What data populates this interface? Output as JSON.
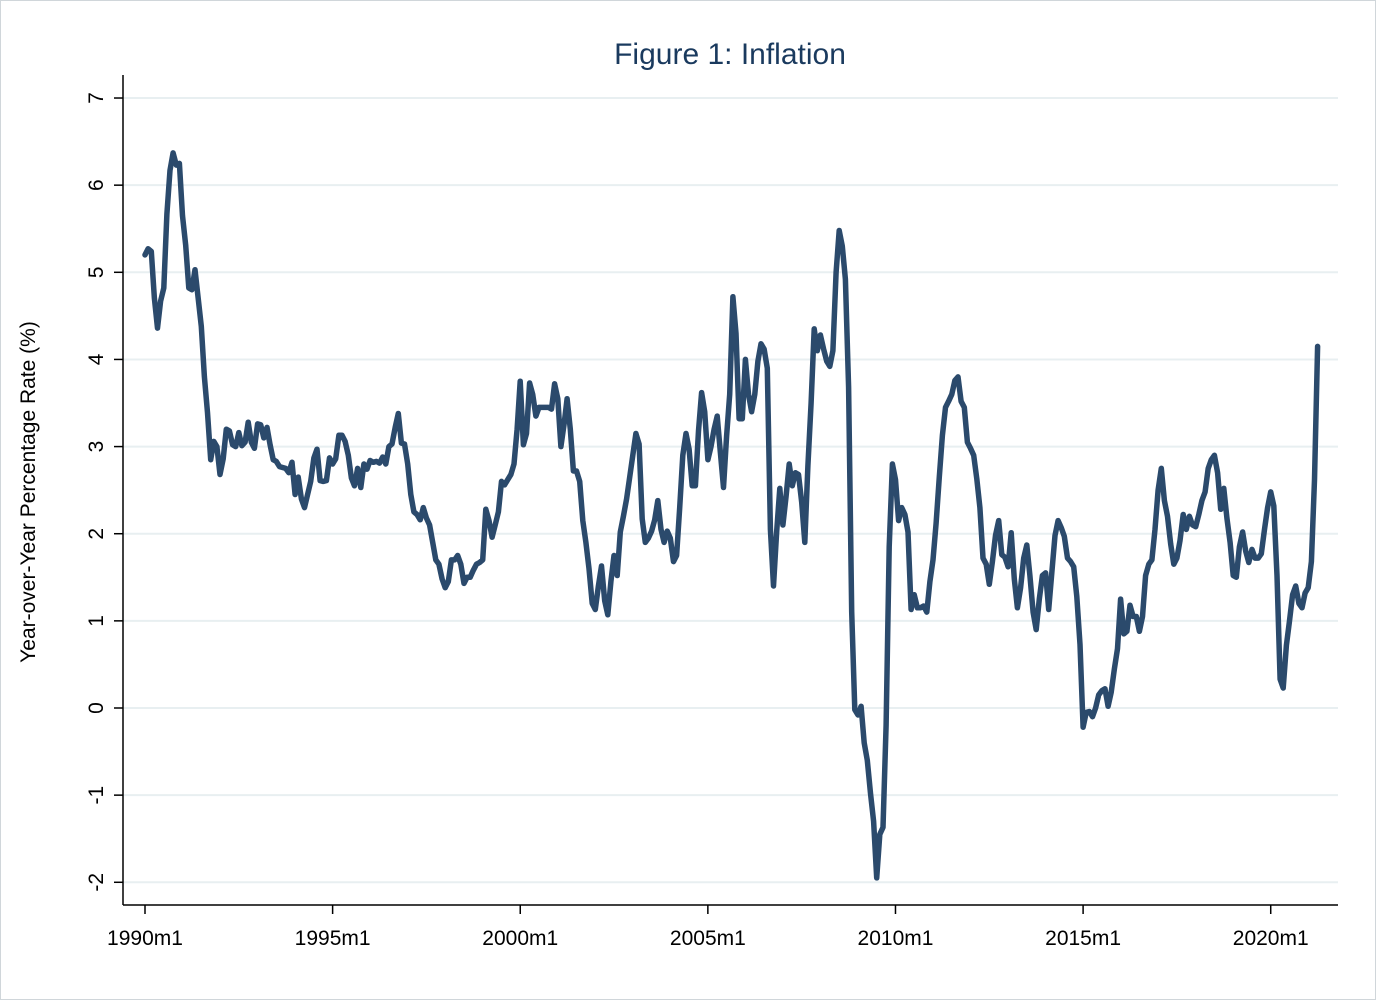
{
  "chart_data": {
    "type": "line",
    "title": "Figure 1: Inflation",
    "xlabel": "",
    "ylabel": "Year-over-Year Percentage Rate (%)",
    "ylim": [
      -2,
      7
    ],
    "yticks": [
      "-2",
      "-1",
      "0",
      "1",
      "2",
      "3",
      "4",
      "5",
      "6",
      "7"
    ],
    "xticks": [
      "1990m1",
      "1995m1",
      "2000m1",
      "2005m1",
      "2010m1",
      "2015m1",
      "2020m1"
    ],
    "grid": true,
    "line_color": "#2b4a6c",
    "title_color": "#1a3a5e",
    "x": [
      "1990m1",
      "1990m2",
      "1990m3",
      "1990m4",
      "1990m5",
      "1990m6",
      "1990m7",
      "1990m8",
      "1990m9",
      "1990m10",
      "1990m11",
      "1990m12",
      "1991m1",
      "1991m2",
      "1991m3",
      "1991m4",
      "1991m5",
      "1991m6",
      "1991m7",
      "1991m8",
      "1991m9",
      "1991m10",
      "1991m11",
      "1991m12",
      "1992m1",
      "1992m2",
      "1992m3",
      "1992m4",
      "1992m5",
      "1992m6",
      "1992m7",
      "1992m8",
      "1992m9",
      "1992m10",
      "1992m11",
      "1992m12",
      "1993m1",
      "1993m2",
      "1993m3",
      "1993m4",
      "1993m5",
      "1993m6",
      "1993m7",
      "1993m8",
      "1993m9",
      "1993m10",
      "1993m11",
      "1993m12",
      "1994m1",
      "1994m2",
      "1994m3",
      "1994m4",
      "1994m5",
      "1994m6",
      "1994m7",
      "1994m8",
      "1994m9",
      "1994m10",
      "1994m11",
      "1994m12",
      "1995m1",
      "1995m2",
      "1995m3",
      "1995m4",
      "1995m5",
      "1995m6",
      "1995m7",
      "1995m8",
      "1995m9",
      "1995m10",
      "1995m11",
      "1995m12",
      "1996m1",
      "1996m2",
      "1996m3",
      "1996m4",
      "1996m5",
      "1996m6",
      "1996m7",
      "1996m8",
      "1996m9",
      "1996m10",
      "1996m11",
      "1996m12",
      "1997m1",
      "1997m2",
      "1997m3",
      "1997m4",
      "1997m5",
      "1997m6",
      "1997m7",
      "1997m8",
      "1997m9",
      "1997m10",
      "1997m11",
      "1997m12",
      "1998m1",
      "1998m2",
      "1998m3",
      "1998m4",
      "1998m5",
      "1998m6",
      "1998m7",
      "1998m8",
      "1998m9",
      "1998m10",
      "1998m11",
      "1998m12",
      "1999m1",
      "1999m2",
      "1999m3",
      "1999m4",
      "1999m5",
      "1999m6",
      "1999m7",
      "1999m8",
      "1999m9",
      "1999m10",
      "1999m11",
      "1999m12",
      "2000m1",
      "2000m2",
      "2000m3",
      "2000m4",
      "2000m5",
      "2000m6",
      "2000m7",
      "2000m8",
      "2000m9",
      "2000m10",
      "2000m11",
      "2000m12",
      "2001m1",
      "2001m2",
      "2001m3",
      "2001m4",
      "2001m5",
      "2001m6",
      "2001m7",
      "2001m8",
      "2001m9",
      "2001m10",
      "2001m11",
      "2001m12",
      "2002m1",
      "2002m2",
      "2002m3",
      "2002m4",
      "2002m5",
      "2002m6",
      "2002m7",
      "2002m8",
      "2002m9",
      "2002m10",
      "2002m11",
      "2002m12",
      "2003m1",
      "2003m2",
      "2003m3",
      "2003m4",
      "2003m5",
      "2003m6",
      "2003m7",
      "2003m8",
      "2003m9",
      "2003m10",
      "2003m11",
      "2003m12",
      "2004m1",
      "2004m2",
      "2004m3",
      "2004m4",
      "2004m5",
      "2004m6",
      "2004m7",
      "2004m8",
      "2004m9",
      "2004m10",
      "2004m11",
      "2004m12",
      "2005m1",
      "2005m2",
      "2005m3",
      "2005m4",
      "2005m5",
      "2005m6",
      "2005m7",
      "2005m8",
      "2005m9",
      "2005m10",
      "2005m11",
      "2005m12",
      "2006m1",
      "2006m2",
      "2006m3",
      "2006m4",
      "2006m5",
      "2006m6",
      "2006m7",
      "2006m8",
      "2006m9",
      "2006m10",
      "2006m11",
      "2006m12",
      "2007m1",
      "2007m2",
      "2007m3",
      "2007m4",
      "2007m5",
      "2007m6",
      "2007m7",
      "2007m8",
      "2007m9",
      "2007m10",
      "2007m11",
      "2007m12",
      "2008m1",
      "2008m2",
      "2008m3",
      "2008m4",
      "2008m5",
      "2008m6",
      "2008m7",
      "2008m8",
      "2008m9",
      "2008m10",
      "2008m11",
      "2008m12",
      "2009m1",
      "2009m2",
      "2009m3",
      "2009m4",
      "2009m5",
      "2009m6",
      "2009m7",
      "2009m8",
      "2009m9",
      "2009m10",
      "2009m11",
      "2009m12",
      "2010m1",
      "2010m2",
      "2010m3",
      "2010m4",
      "2010m5",
      "2010m6",
      "2010m7",
      "2010m8",
      "2010m9",
      "2010m10",
      "2010m11",
      "2010m12",
      "2011m1",
      "2011m2",
      "2011m3",
      "2011m4",
      "2011m5",
      "2011m6",
      "2011m7",
      "2011m8",
      "2011m9",
      "2011m10",
      "2011m11",
      "2011m12",
      "2012m1",
      "2012m2",
      "2012m3",
      "2012m4",
      "2012m5",
      "2012m6",
      "2012m7",
      "2012m8",
      "2012m9",
      "2012m10",
      "2012m11",
      "2012m12",
      "2013m1",
      "2013m2",
      "2013m3",
      "2013m4",
      "2013m5",
      "2013m6",
      "2013m7",
      "2013m8",
      "2013m9",
      "2013m10",
      "2013m11",
      "2013m12",
      "2014m1",
      "2014m2",
      "2014m3",
      "2014m4",
      "2014m5",
      "2014m6",
      "2014m7",
      "2014m8",
      "2014m9",
      "2014m10",
      "2014m11",
      "2014m12",
      "2015m1",
      "2015m2",
      "2015m3",
      "2015m4",
      "2015m5",
      "2015m6",
      "2015m7",
      "2015m8",
      "2015m9",
      "2015m10",
      "2015m11",
      "2015m12",
      "2016m1",
      "2016m2",
      "2016m3",
      "2016m4",
      "2016m5",
      "2016m6",
      "2016m7",
      "2016m8",
      "2016m9",
      "2016m10",
      "2016m11",
      "2016m12",
      "2017m1",
      "2017m2",
      "2017m3",
      "2017m4",
      "2017m5",
      "2017m6",
      "2017m7",
      "2017m8",
      "2017m9",
      "2017m10",
      "2017m11",
      "2017m12",
      "2018m1",
      "2018m2",
      "2018m3",
      "2018m4",
      "2018m5",
      "2018m6",
      "2018m7",
      "2018m8",
      "2018m9",
      "2018m10",
      "2018m11",
      "2018m12",
      "2019m1",
      "2019m2",
      "2019m3",
      "2019m4",
      "2019m5",
      "2019m6",
      "2019m7",
      "2019m8",
      "2019m9",
      "2019m10",
      "2019m11",
      "2019m12",
      "2020m1",
      "2020m2",
      "2020m3",
      "2020m4",
      "2020m5",
      "2020m6",
      "2020m7",
      "2020m8",
      "2020m9",
      "2020m10",
      "2020m11",
      "2020m12",
      "2021m1",
      "2021m2",
      "2021m3",
      "2021m4"
    ],
    "y": [
      5.2,
      5.27,
      5.24,
      4.7,
      4.36,
      4.67,
      4.82,
      5.67,
      6.17,
      6.37,
      6.23,
      6.25,
      5.65,
      5.31,
      4.82,
      4.8,
      5.03,
      4.7,
      4.38,
      3.8,
      3.39,
      2.85,
      3.06,
      3.0,
      2.68,
      2.86,
      3.2,
      3.18,
      3.02,
      3.0,
      3.16,
      3.01,
      3.05,
      3.28,
      3.05,
      2.98,
      3.26,
      3.25,
      3.1,
      3.22,
      3.02,
      2.85,
      2.83,
      2.77,
      2.76,
      2.75,
      2.7,
      2.82,
      2.45,
      2.65,
      2.4,
      2.3,
      2.45,
      2.6,
      2.87,
      2.97,
      2.61,
      2.6,
      2.61,
      2.87,
      2.8,
      2.86,
      3.13,
      3.13,
      3.06,
      2.9,
      2.64,
      2.55,
      2.75,
      2.53,
      2.8,
      2.74,
      2.84,
      2.82,
      2.83,
      2.81,
      2.88,
      2.8,
      3.0,
      3.03,
      3.22,
      3.38,
      3.04,
      3.03,
      2.8,
      2.45,
      2.25,
      2.22,
      2.16,
      2.3,
      2.18,
      2.1,
      1.9,
      1.7,
      1.65,
      1.48,
      1.38,
      1.45,
      1.7,
      1.7,
      1.75,
      1.65,
      1.43,
      1.5,
      1.5,
      1.58,
      1.65,
      1.67,
      1.7,
      2.28,
      2.15,
      1.96,
      2.1,
      2.25,
      2.6,
      2.56,
      2.62,
      2.68,
      2.8,
      3.2,
      3.75,
      3.02,
      3.15,
      3.73,
      3.6,
      3.35,
      3.45,
      3.45,
      3.45,
      3.45,
      3.43,
      3.72,
      3.55,
      3.0,
      3.25,
      3.55,
      3.2,
      2.72,
      2.72,
      2.6,
      2.15,
      1.9,
      1.6,
      1.2,
      1.13,
      1.4,
      1.63,
      1.23,
      1.07,
      1.45,
      1.75,
      1.52,
      2.02,
      2.2,
      2.4,
      2.65,
      2.9,
      3.15,
      3.03,
      2.17,
      1.9,
      1.95,
      2.03,
      2.16,
      2.38,
      2.05,
      1.9,
      2.03,
      1.95,
      1.68,
      1.75,
      2.3,
      2.9,
      3.15,
      2.97,
      2.55,
      2.55,
      3.18,
      3.62,
      3.4,
      2.85,
      3.0,
      3.2,
      3.35,
      2.93,
      2.53,
      3.12,
      3.6,
      4.72,
      4.3,
      3.32,
      3.32,
      4.0,
      3.6,
      3.4,
      3.6,
      3.98,
      4.18,
      4.12,
      3.9,
      2.05,
      1.4,
      2.03,
      2.52,
      2.1,
      2.42,
      2.8,
      2.55,
      2.7,
      2.68,
      2.36,
      1.9,
      2.78,
      3.5,
      4.35,
      4.1,
      4.28,
      4.12,
      3.98,
      3.92,
      4.1,
      5.0,
      5.48,
      5.3,
      4.92,
      3.68,
      1.1,
      -0.02,
      -0.08,
      0.02,
      -0.4,
      -0.6,
      -0.98,
      -1.3,
      -1.95,
      -1.45,
      -1.37,
      -0.2,
      1.85,
      2.8,
      2.62,
      2.15,
      2.3,
      2.22,
      2.02,
      1.13,
      1.3,
      1.15,
      1.15,
      1.17,
      1.1,
      1.45,
      1.7,
      2.12,
      2.65,
      3.13,
      3.45,
      3.52,
      3.6,
      3.76,
      3.8,
      3.52,
      3.45,
      3.05,
      2.98,
      2.9,
      2.63,
      2.3,
      1.72,
      1.65,
      1.42,
      1.68,
      1.98,
      2.15,
      1.76,
      1.73,
      1.62,
      2.01,
      1.48,
      1.15,
      1.38,
      1.72,
      1.87,
      1.52,
      1.1,
      0.9,
      1.25,
      1.52,
      1.55,
      1.13,
      1.55,
      1.98,
      2.15,
      2.07,
      1.97,
      1.72,
      1.68,
      1.62,
      1.28,
      0.73,
      -0.22,
      -0.05,
      -0.04,
      -0.1,
      0.0,
      0.15,
      0.2,
      0.22,
      0.02,
      0.18,
      0.45,
      0.68,
      1.25,
      0.85,
      0.88,
      1.18,
      1.05,
      1.05,
      0.88,
      1.05,
      1.52,
      1.65,
      1.7,
      2.05,
      2.5,
      2.75,
      2.38,
      2.2,
      1.88,
      1.65,
      1.72,
      1.92,
      2.22,
      2.05,
      2.2,
      2.1,
      2.08,
      2.22,
      2.38,
      2.48,
      2.75,
      2.85,
      2.9,
      2.7,
      2.28,
      2.52,
      2.18,
      1.9,
      1.52,
      1.5,
      1.85,
      2.02,
      1.8,
      1.67,
      1.82,
      1.72,
      1.72,
      1.77,
      2.05,
      2.3,
      2.48,
      2.32,
      1.52,
      0.33,
      0.23,
      0.72,
      1.0,
      1.3,
      1.4,
      1.2,
      1.15,
      1.32,
      1.38,
      1.68,
      2.62,
      4.15
    ]
  }
}
